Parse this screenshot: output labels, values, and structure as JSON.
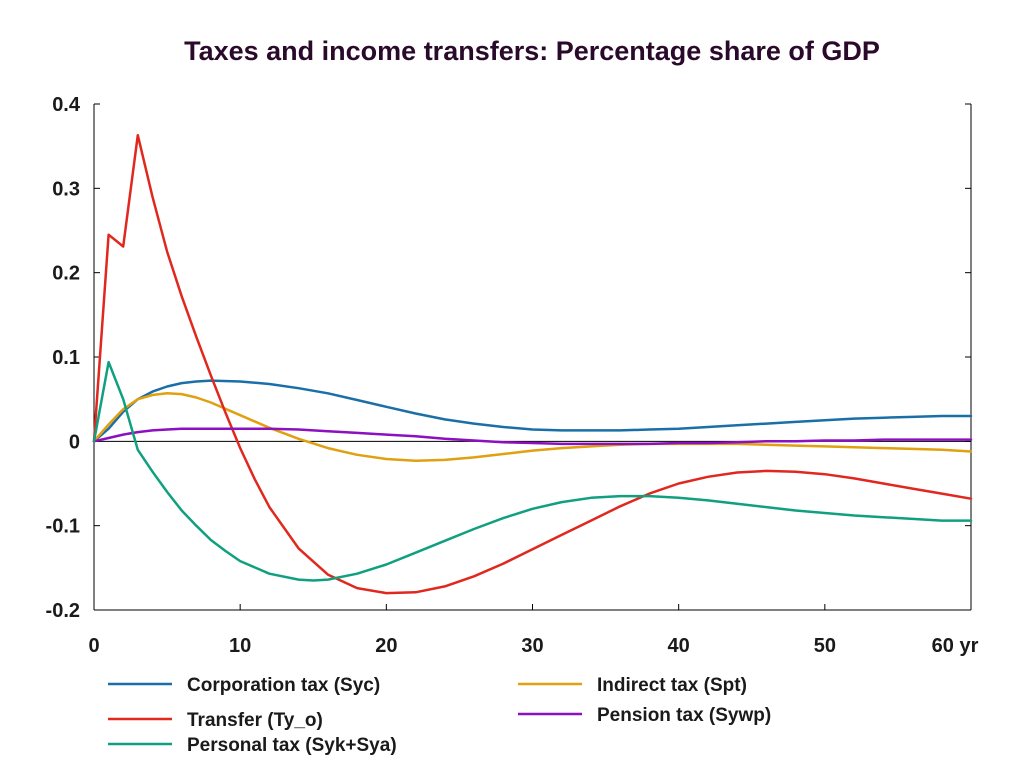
{
  "chart_data": {
    "type": "line",
    "title": "Taxes and income transfers: Percentage share of GDP",
    "xlabel": "",
    "ylabel": "",
    "xlim": [
      0,
      60
    ],
    "ylim": [
      -0.2,
      0.4
    ],
    "x_ticks": [
      0,
      10,
      20,
      30,
      40,
      50,
      60
    ],
    "x_tick_labels": [
      "0",
      "10",
      "20",
      "30",
      "40",
      "50",
      "60 yr"
    ],
    "y_ticks": [
      -0.2,
      -0.1,
      0,
      0.1,
      0.2,
      0.3,
      0.4
    ],
    "y_tick_labels": [
      "-0.2",
      "-0.1",
      "0",
      "0.1",
      "0.2",
      "0.3",
      "0.4"
    ],
    "grid": false,
    "legend_position": "bottom",
    "series": [
      {
        "name": "Corporation tax (Syc)",
        "color": "#1a6fa8",
        "points": [
          [
            0,
            0
          ],
          [
            1,
            0.015
          ],
          [
            2,
            0.035
          ],
          [
            3,
            0.05
          ],
          [
            4,
            0.059
          ],
          [
            5,
            0.065
          ],
          [
            6,
            0.069
          ],
          [
            7,
            0.071
          ],
          [
            8,
            0.072
          ],
          [
            10,
            0.071
          ],
          [
            12,
            0.068
          ],
          [
            14,
            0.063
          ],
          [
            16,
            0.057
          ],
          [
            18,
            0.049
          ],
          [
            20,
            0.041
          ],
          [
            22,
            0.033
          ],
          [
            24,
            0.026
          ],
          [
            26,
            0.021
          ],
          [
            28,
            0.017
          ],
          [
            30,
            0.014
          ],
          [
            32,
            0.013
          ],
          [
            34,
            0.013
          ],
          [
            36,
            0.013
          ],
          [
            38,
            0.014
          ],
          [
            40,
            0.015
          ],
          [
            42,
            0.017
          ],
          [
            44,
            0.019
          ],
          [
            46,
            0.021
          ],
          [
            48,
            0.023
          ],
          [
            50,
            0.025
          ],
          [
            52,
            0.027
          ],
          [
            54,
            0.028
          ],
          [
            56,
            0.029
          ],
          [
            58,
            0.03
          ],
          [
            60,
            0.03
          ]
        ]
      },
      {
        "name": "Indirect tax (Spt)",
        "color": "#e0a010",
        "points": [
          [
            0,
            0
          ],
          [
            1,
            0.02
          ],
          [
            2,
            0.038
          ],
          [
            3,
            0.05
          ],
          [
            4,
            0.055
          ],
          [
            5,
            0.057
          ],
          [
            6,
            0.056
          ],
          [
            7,
            0.052
          ],
          [
            8,
            0.046
          ],
          [
            10,
            0.031
          ],
          [
            12,
            0.016
          ],
          [
            14,
            0.003
          ],
          [
            16,
            -0.008
          ],
          [
            18,
            -0.016
          ],
          [
            20,
            -0.021
          ],
          [
            22,
            -0.023
          ],
          [
            24,
            -0.022
          ],
          [
            26,
            -0.019
          ],
          [
            28,
            -0.015
          ],
          [
            30,
            -0.011
          ],
          [
            32,
            -0.008
          ],
          [
            34,
            -0.006
          ],
          [
            36,
            -0.004
          ],
          [
            38,
            -0.003
          ],
          [
            40,
            -0.003
          ],
          [
            42,
            -0.003
          ],
          [
            44,
            -0.003
          ],
          [
            46,
            -0.004
          ],
          [
            48,
            -0.005
          ],
          [
            50,
            -0.006
          ],
          [
            52,
            -0.007
          ],
          [
            54,
            -0.008
          ],
          [
            56,
            -0.009
          ],
          [
            58,
            -0.01
          ],
          [
            60,
            -0.012
          ]
        ]
      },
      {
        "name": "Transfer (Ty_o)",
        "color": "#e0281e",
        "points": [
          [
            0,
            0
          ],
          [
            1,
            0.245
          ],
          [
            2,
            0.231
          ],
          [
            3,
            0.363
          ],
          [
            4,
            0.29
          ],
          [
            5,
            0.225
          ],
          [
            6,
            0.172
          ],
          [
            7,
            0.124
          ],
          [
            8,
            0.078
          ],
          [
            9,
            0.034
          ],
          [
            10,
            -0.008
          ],
          [
            11,
            -0.045
          ],
          [
            12,
            -0.078
          ],
          [
            14,
            -0.127
          ],
          [
            16,
            -0.158
          ],
          [
            18,
            -0.174
          ],
          [
            20,
            -0.18
          ],
          [
            22,
            -0.179
          ],
          [
            24,
            -0.172
          ],
          [
            26,
            -0.16
          ],
          [
            28,
            -0.145
          ],
          [
            30,
            -0.128
          ],
          [
            32,
            -0.111
          ],
          [
            34,
            -0.094
          ],
          [
            36,
            -0.077
          ],
          [
            38,
            -0.062
          ],
          [
            40,
            -0.05
          ],
          [
            42,
            -0.042
          ],
          [
            44,
            -0.037
          ],
          [
            46,
            -0.035
          ],
          [
            48,
            -0.036
          ],
          [
            50,
            -0.039
          ],
          [
            52,
            -0.044
          ],
          [
            54,
            -0.05
          ],
          [
            56,
            -0.056
          ],
          [
            58,
            -0.062
          ],
          [
            60,
            -0.068
          ]
        ]
      },
      {
        "name": "Pension tax (Sywp)",
        "color": "#8c10c0",
        "points": [
          [
            0,
            0
          ],
          [
            1,
            0.004
          ],
          [
            2,
            0.008
          ],
          [
            3,
            0.011
          ],
          [
            4,
            0.013
          ],
          [
            5,
            0.014
          ],
          [
            6,
            0.015
          ],
          [
            8,
            0.015
          ],
          [
            10,
            0.015
          ],
          [
            12,
            0.015
          ],
          [
            14,
            0.014
          ],
          [
            16,
            0.012
          ],
          [
            18,
            0.01
          ],
          [
            20,
            0.008
          ],
          [
            22,
            0.006
          ],
          [
            24,
            0.003
          ],
          [
            26,
            0.001
          ],
          [
            28,
            -0.001
          ],
          [
            30,
            -0.002
          ],
          [
            32,
            -0.003
          ],
          [
            34,
            -0.003
          ],
          [
            36,
            -0.003
          ],
          [
            38,
            -0.003
          ],
          [
            40,
            -0.002
          ],
          [
            42,
            -0.002
          ],
          [
            44,
            -0.001
          ],
          [
            46,
            0
          ],
          [
            48,
            0
          ],
          [
            50,
            0.001
          ],
          [
            52,
            0.001
          ],
          [
            54,
            0.002
          ],
          [
            56,
            0.002
          ],
          [
            58,
            0.002
          ],
          [
            60,
            0.002
          ]
        ]
      },
      {
        "name": "Personal tax (Syk+Sya)",
        "color": "#10a080",
        "points": [
          [
            0,
            0
          ],
          [
            1,
            0.094
          ],
          [
            2,
            0.05
          ],
          [
            3,
            -0.01
          ],
          [
            4,
            -0.036
          ],
          [
            5,
            -0.06
          ],
          [
            6,
            -0.082
          ],
          [
            7,
            -0.1
          ],
          [
            8,
            -0.117
          ],
          [
            9,
            -0.13
          ],
          [
            10,
            -0.142
          ],
          [
            12,
            -0.157
          ],
          [
            14,
            -0.164
          ],
          [
            15,
            -0.165
          ],
          [
            16,
            -0.164
          ],
          [
            18,
            -0.157
          ],
          [
            20,
            -0.146
          ],
          [
            22,
            -0.132
          ],
          [
            24,
            -0.118
          ],
          [
            26,
            -0.104
          ],
          [
            28,
            -0.091
          ],
          [
            30,
            -0.08
          ],
          [
            32,
            -0.072
          ],
          [
            34,
            -0.067
          ],
          [
            36,
            -0.065
          ],
          [
            38,
            -0.065
          ],
          [
            40,
            -0.067
          ],
          [
            42,
            -0.07
          ],
          [
            44,
            -0.074
          ],
          [
            46,
            -0.078
          ],
          [
            48,
            -0.082
          ],
          [
            50,
            -0.085
          ],
          [
            52,
            -0.088
          ],
          [
            54,
            -0.09
          ],
          [
            56,
            -0.092
          ],
          [
            58,
            -0.094
          ],
          [
            60,
            -0.094
          ]
        ]
      }
    ],
    "legend": {
      "columns": [
        [
          "Corporation tax (Syc)",
          "Transfer (Ty_o)",
          "Personal tax (Syk+Sya)"
        ],
        [
          "Indirect tax (Spt)",
          "Pension tax (Sywp)"
        ]
      ]
    }
  }
}
